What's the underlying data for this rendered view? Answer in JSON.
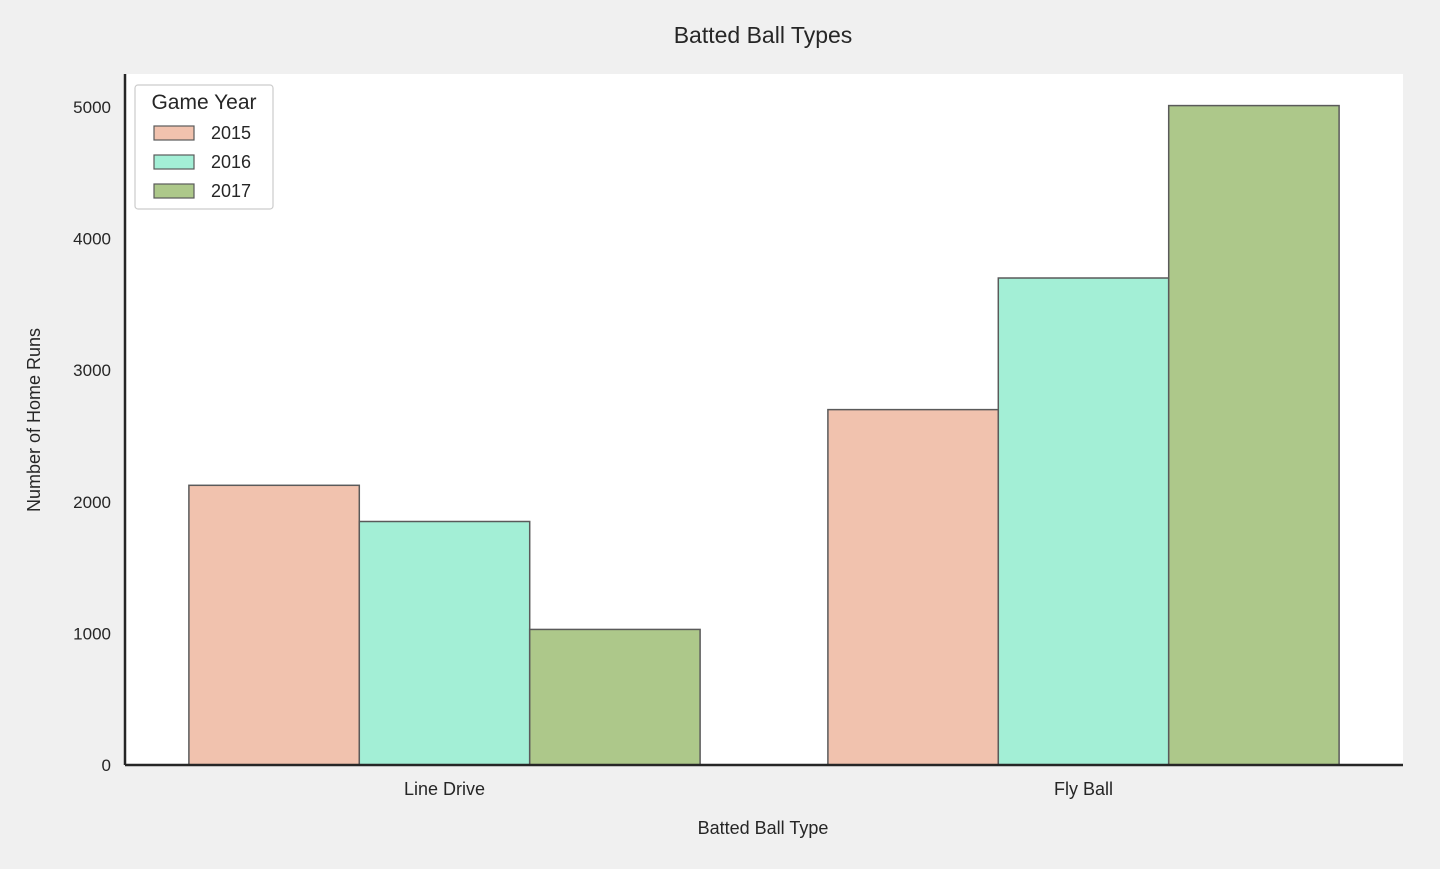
{
  "chart_data": {
    "type": "bar",
    "title": "Batted Ball Types",
    "xlabel": "Batted Ball Type",
    "ylabel": "Number of Home Runs",
    "categories": [
      "Line Drive",
      "Fly Ball"
    ],
    "series": [
      {
        "name": "2015",
        "values": [
          2125,
          2700
        ],
        "color": "#f1c2ae"
      },
      {
        "name": "2016",
        "values": [
          1850,
          3700
        ],
        "color": "#a3efd6"
      },
      {
        "name": "2017",
        "values": [
          1030,
          5010
        ],
        "color": "#adc88a"
      }
    ],
    "ylim": [
      0,
      5250
    ],
    "yticks": [
      "0",
      "1000",
      "2000",
      "3000",
      "4000",
      "5000"
    ],
    "legend": {
      "title": "Game Year",
      "placement": "top-left"
    },
    "grid": false,
    "plot_background": "#ffffff",
    "figure_background": "#f0f0f0",
    "bar_edge_color": "#5a5a5a"
  }
}
